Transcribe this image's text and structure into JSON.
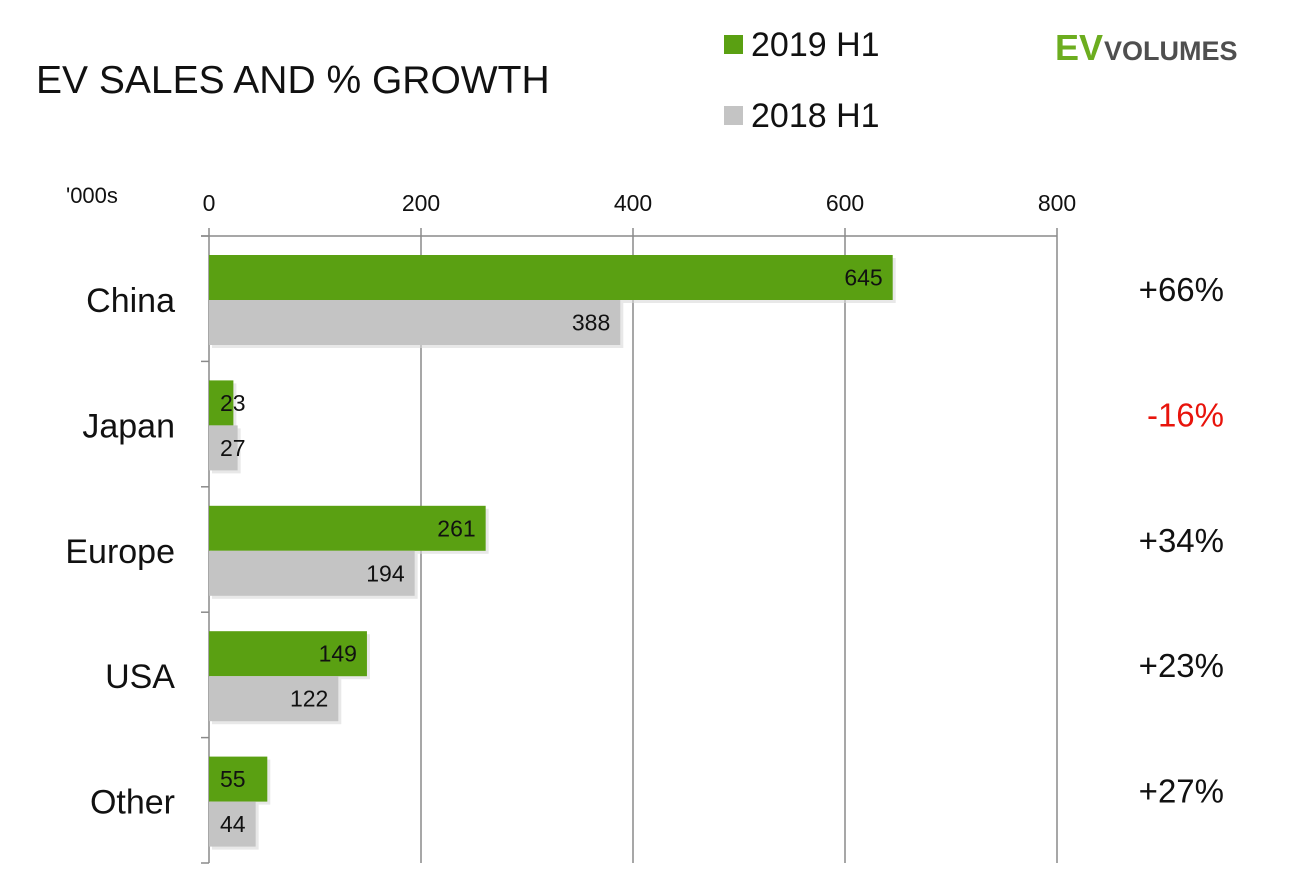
{
  "chart_data": {
    "type": "bar",
    "orientation": "horizontal",
    "title": "EV SALES AND % GROWTH",
    "unit_label": "'000s",
    "categories": [
      "China",
      "Japan",
      "Europe",
      "USA",
      "Other"
    ],
    "series": [
      {
        "name": "2019 H1",
        "color": "#5aa012",
        "values": [
          645,
          23,
          261,
          149,
          55
        ]
      },
      {
        "name": "2018 H1",
        "color": "#c4c4c4",
        "values": [
          388,
          27,
          194,
          122,
          44
        ]
      }
    ],
    "growth": [
      "+66%",
      "-16%",
      "+34%",
      "+23%",
      "+27%"
    ],
    "growth_colors": [
      "#111111",
      "#e8140c",
      "#111111",
      "#111111",
      "#111111"
    ],
    "x_ticks": [
      0,
      200,
      400,
      600,
      800
    ],
    "xlim": [
      0,
      800
    ],
    "grid": true,
    "legend_position": "top"
  },
  "logo": {
    "ev": "EV",
    "volumes": "VOLUMES",
    "ev_color": "#6cad1f"
  }
}
